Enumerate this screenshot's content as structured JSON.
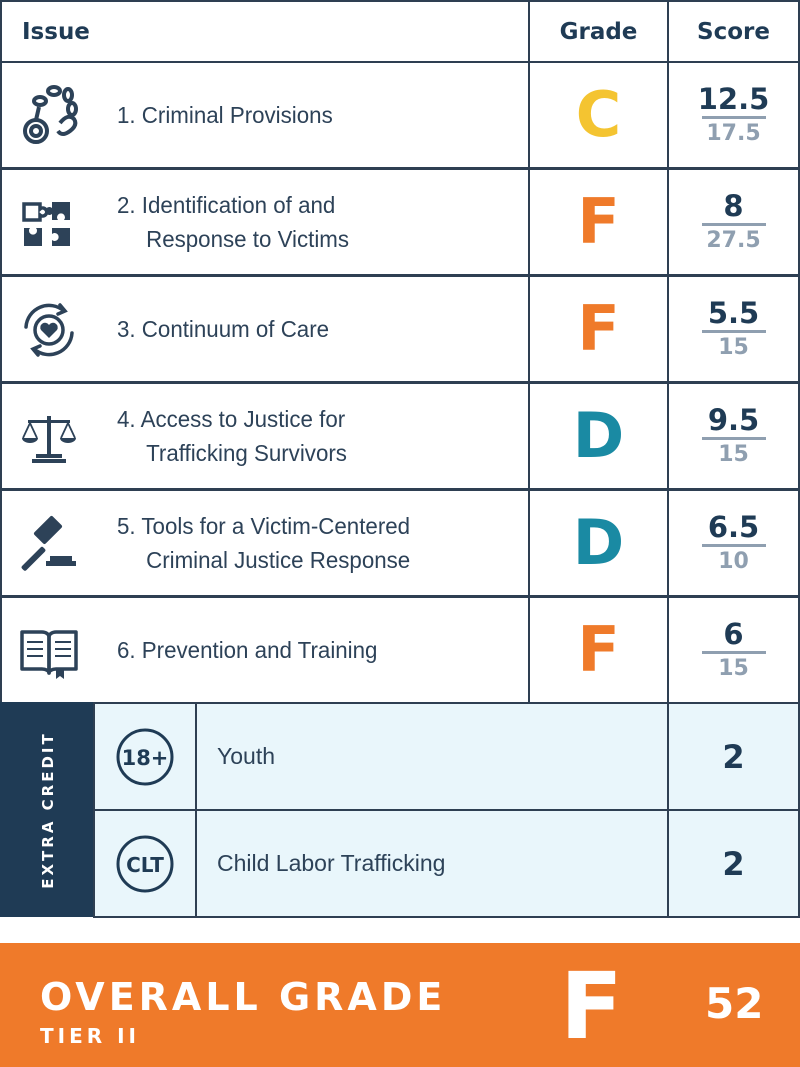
{
  "header": {
    "issue": "Issue",
    "grade": "Grade",
    "score": "Score"
  },
  "issues": [
    {
      "line1": "1. Criminal Provisions",
      "line2": "",
      "grade": "C",
      "score": "12.5",
      "max": "17.5",
      "icon": "handcuffs-icon"
    },
    {
      "line1": "2. Identification of and",
      "line2": "Response to Victims",
      "grade": "F",
      "score": "8",
      "max": "27.5",
      "icon": "puzzle-icon"
    },
    {
      "line1": "3. Continuum of Care",
      "line2": "",
      "grade": "F",
      "score": "5.5",
      "max": "15",
      "icon": "heart-cycle-icon"
    },
    {
      "line1": "4. Access to Justice for",
      "line2": "Trafficking Survivors",
      "grade": "D",
      "score": "9.5",
      "max": "15",
      "icon": "scales-icon"
    },
    {
      "line1": "5. Tools for a Victim-Centered",
      "line2": "Criminal Justice Response",
      "grade": "D",
      "score": "6.5",
      "max": "10",
      "icon": "gavel-icon"
    },
    {
      "line1": "6. Prevention and Training",
      "line2": "",
      "grade": "F",
      "score": "6",
      "max": "15",
      "icon": "book-icon"
    }
  ],
  "extra_credit": {
    "title": "EXTRA CREDIT",
    "items": [
      {
        "badge": "18+",
        "label": "Youth",
        "score": "2"
      },
      {
        "badge": "CLT",
        "label": "Child Labor Trafficking",
        "score": "2"
      }
    ]
  },
  "overall": {
    "title": "OVERALL GRADE",
    "tier": "TIER II",
    "grade": "F",
    "score": "52"
  },
  "colors": {
    "navy": "#1f3b55",
    "orange": "#ef7a2a",
    "yellow": "#f4c431",
    "teal": "#1a8aa3",
    "light_blue": "#e9f6fb",
    "gray": "#8f9fb0"
  }
}
